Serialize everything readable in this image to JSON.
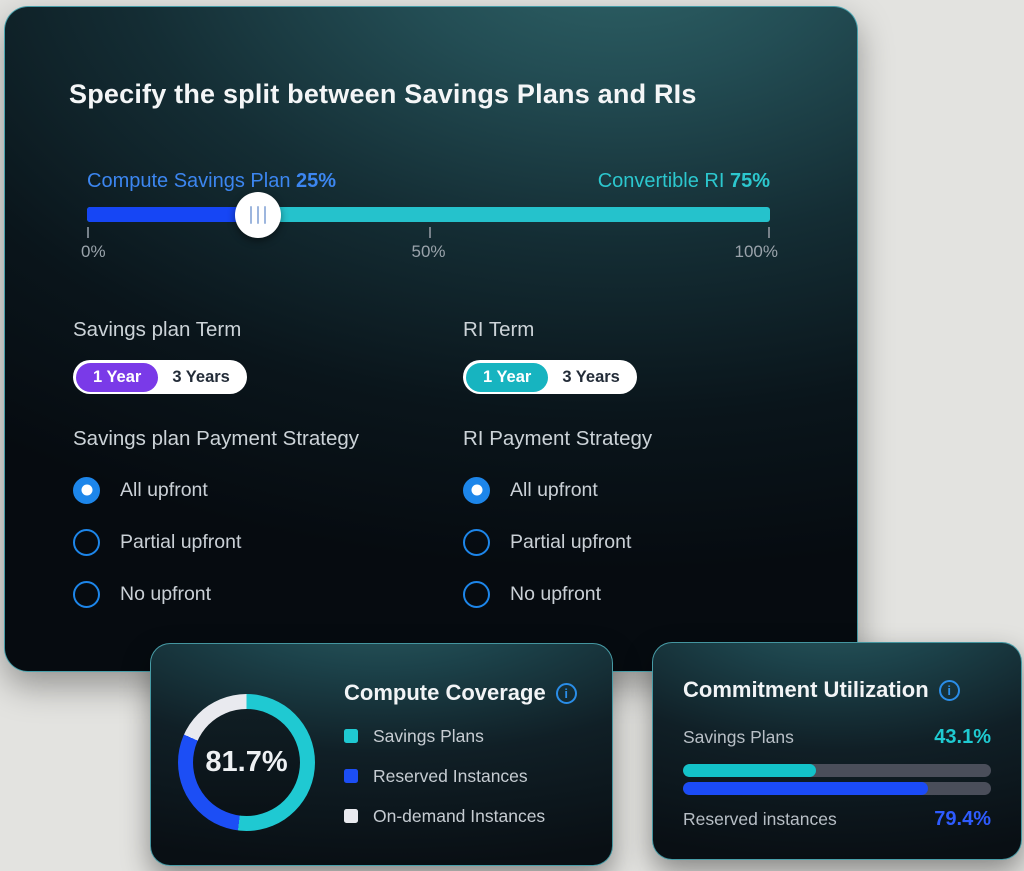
{
  "split_card": {
    "title": "Specify the split between Savings Plans and RIs",
    "slider": {
      "left_label": "Compute Savings Plan",
      "left_value": "25%",
      "right_label": "Convertible RI",
      "right_value": "75%",
      "percent": 25,
      "ticks": [
        "0%",
        "50%",
        "100%"
      ]
    },
    "savings_term": {
      "label": "Savings plan Term",
      "options": [
        "1 Year",
        "3 Years"
      ],
      "selected": "1 Year"
    },
    "ri_term": {
      "label": "RI Term",
      "options": [
        "1 Year",
        "3 Years"
      ],
      "selected": "1 Year"
    },
    "savings_payment": {
      "label": "Savings plan Payment Strategy",
      "options": [
        "All upfront",
        "Partial upfront",
        "No upfront"
      ],
      "selected": "All upfront"
    },
    "ri_payment": {
      "label": "RI Payment Strategy",
      "options": [
        "All upfront",
        "Partial upfront",
        "No upfront"
      ],
      "selected": "All upfront"
    }
  },
  "coverage_card": {
    "title": "Compute Coverage",
    "info_icon": "i"
  },
  "utilization_card": {
    "title": "Commitment Utilization",
    "info_icon": "i"
  },
  "chart_data": [
    {
      "type": "pie",
      "title": "Compute Coverage",
      "center_label": "81.7%",
      "segments": [
        {
          "label": "Savings Plans",
          "value": 52.0,
          "color": "#1fc9d2"
        },
        {
          "label": "Reserved Instances",
          "value": 29.7,
          "color": "#1c4ef5"
        },
        {
          "label": "On-demand Instances",
          "value": 18.3,
          "color": "#e9eaef"
        }
      ],
      "legend_position": "right",
      "start_angle_deg": 0
    },
    {
      "type": "bar",
      "title": "Commitment Utilization",
      "categories": [
        "Savings Plans",
        "Reserved instances"
      ],
      "values": [
        43.1,
        79.4
      ],
      "value_labels": [
        "43.1%",
        "79.4%"
      ],
      "colors": [
        "#13c2c9",
        "#1b4bf7"
      ],
      "track_color": "#4a4e5a",
      "xlim": [
        0,
        100
      ]
    }
  ],
  "colors": {
    "slider_blue": "#1646f5",
    "slider_teal": "#25c2cc",
    "label_blue": "#3c86f0",
    "label_teal": "#2cc7ce",
    "purple_selected": "#7a3ae8",
    "teal_selected": "#17b4c0",
    "radio_blue": "#1d86ea",
    "info_blue": "#2a8de8",
    "value_teal": "#1fcad1",
    "value_blue": "#2e5bff"
  }
}
